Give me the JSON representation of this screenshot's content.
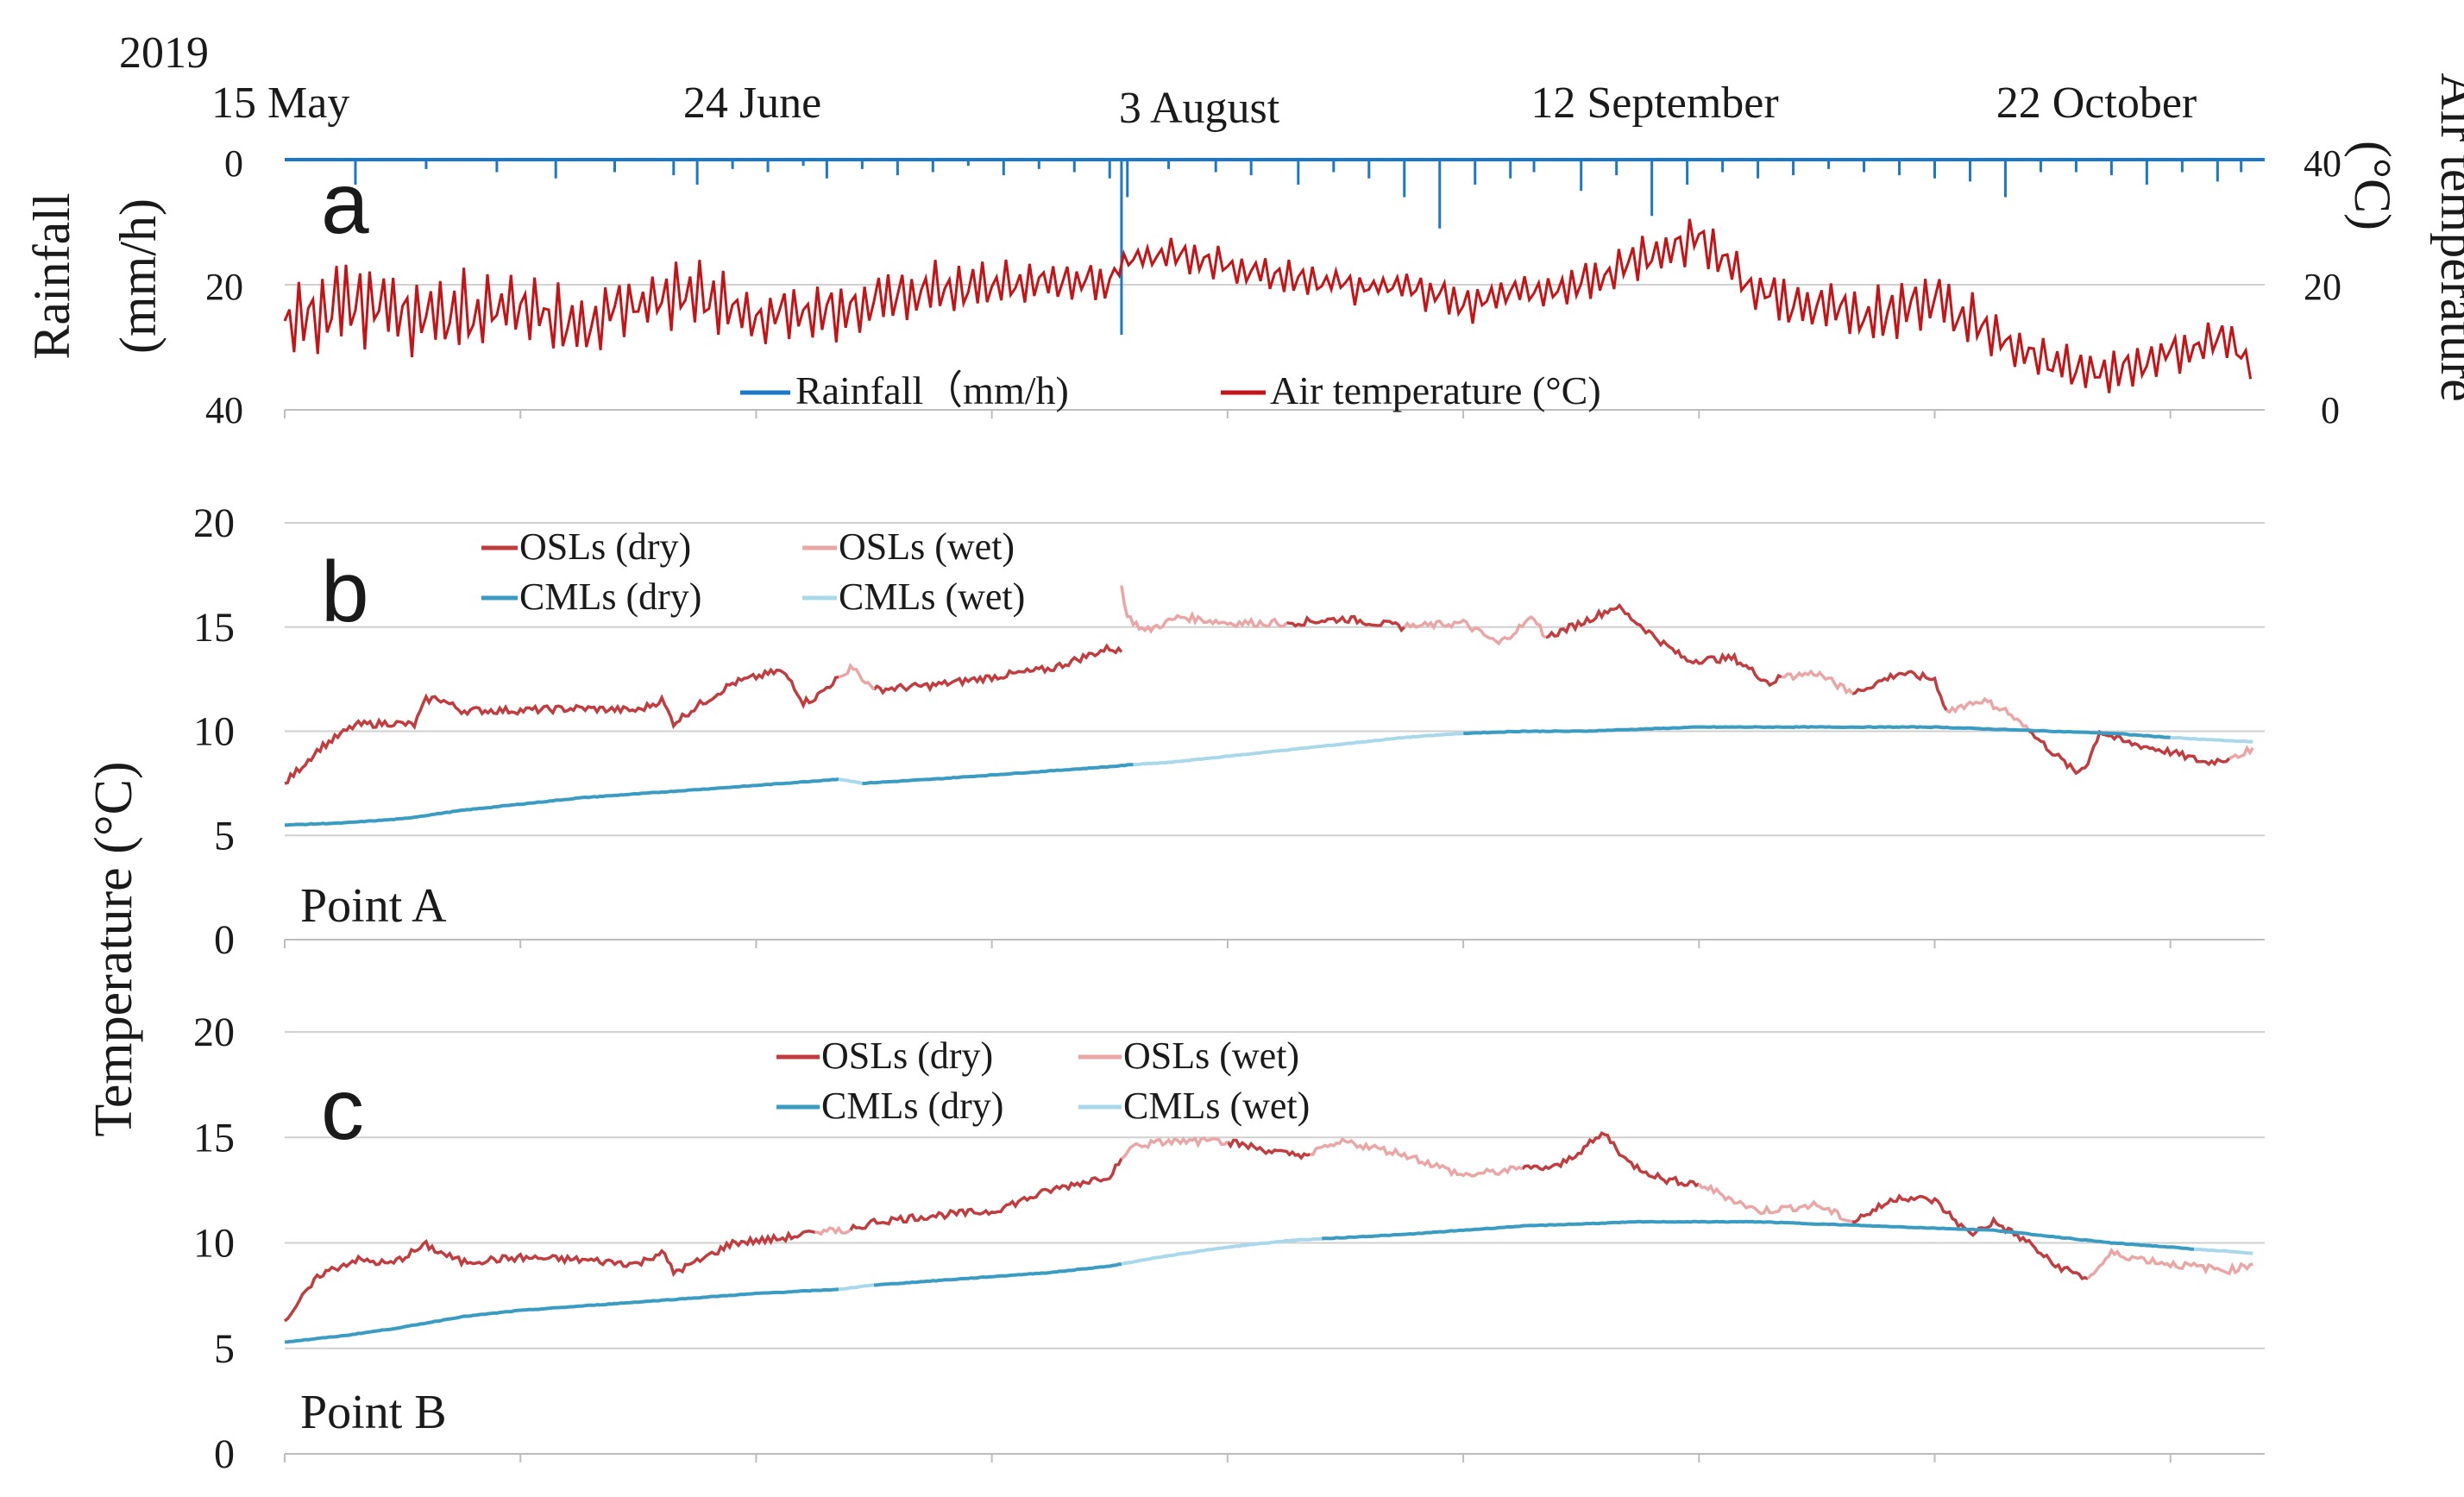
{
  "year_label": "2019",
  "date_ticks": [
    "15 May",
    "24 June",
    "3 August",
    "12 September",
    "22 October"
  ],
  "colors": {
    "rain": "#1b78c8",
    "air": "#c41417",
    "osl_dry": "#c03c3e",
    "osl_wet": "#eaa5a5",
    "cml_dry": "#3a9cc2",
    "cml_wet": "#a8d8ea",
    "grid": "#d0d0d0"
  },
  "chart_data": [
    {
      "id": "a",
      "type": "line",
      "panel_letter": "a",
      "x_unit": "days since 15 May 2019",
      "x_range": [
        0,
        168
      ],
      "ylabel_left": "Rainfall\n(mm/h)",
      "ylabel_right": "Air temperature\n(°C)",
      "y_left_range": [
        0,
        40
      ],
      "y_left_inverted": true,
      "y_left_ticks": [
        "0",
        "20",
        "40"
      ],
      "y_right_range": [
        0,
        40
      ],
      "y_right_ticks": [
        "40",
        "20",
        "0"
      ],
      "legend": [
        "Rainfall（mm/h)",
        "Air temperature (°C)"
      ],
      "series": [
        {
          "name": "Rainfall（mm/h)",
          "key": "rain",
          "axis": "left",
          "style": "spikes",
          "x": [
            6,
            12,
            18,
            23,
            28,
            33,
            35,
            38,
            41,
            44,
            46,
            49,
            52,
            55,
            58,
            61,
            64,
            67,
            70,
            71,
            71.5,
            75,
            79,
            82,
            86,
            89,
            92,
            95,
            98,
            101,
            104,
            106,
            110,
            113,
            116,
            119,
            122,
            125,
            128,
            131,
            134,
            137,
            140,
            143,
            146,
            149,
            152,
            155,
            158,
            161,
            164,
            166
          ],
          "values": [
            4,
            1.5,
            2,
            3,
            2,
            2.5,
            4,
            1.5,
            2,
            1,
            3,
            1.5,
            2.5,
            2,
            1,
            2.5,
            1.5,
            2,
            3,
            28,
            6,
            1.5,
            2,
            2.5,
            4,
            2,
            3,
            6,
            11,
            4,
            3,
            2,
            5,
            2.5,
            9,
            4,
            2,
            3,
            2.5,
            1.5,
            2,
            2.5,
            3,
            3.5,
            6,
            2,
            2,
            2.5,
            4,
            2,
            3.5,
            2
          ]
        },
        {
          "name": "Air temperature (°C)",
          "key": "air",
          "axis": "right",
          "style": "noisy",
          "x": [
            0,
            5,
            10,
            15,
            20,
            25,
            30,
            35,
            40,
            45,
            50,
            55,
            60,
            65,
            70,
            71,
            75,
            80,
            85,
            90,
            95,
            100,
            105,
            110,
            115,
            120,
            125,
            130,
            135,
            140,
            145,
            150,
            155,
            160,
            165,
            167
          ],
          "values": [
            14,
            17,
            16,
            15,
            16,
            14,
            17,
            18,
            15,
            16,
            17,
            19,
            20,
            21,
            20,
            24,
            25,
            23,
            21,
            20,
            20,
            17,
            19,
            20,
            24,
            28,
            19,
            16,
            15,
            18,
            12,
            7,
            6,
            9,
            11,
            7
          ],
          "amplitude": [
            7,
            8,
            8,
            7,
            6,
            6,
            6,
            6,
            5,
            5,
            5,
            5,
            4,
            4,
            4,
            2,
            3,
            3,
            3,
            3,
            3,
            3,
            3,
            4,
            4,
            4,
            4,
            5,
            5,
            5,
            4,
            4,
            4,
            4,
            4,
            3
          ]
        }
      ]
    },
    {
      "id": "b",
      "type": "line",
      "panel_letter": "b",
      "point_label": "Point A",
      "x_range": [
        0,
        168
      ],
      "ylabel": "Temperature (°C)",
      "y_range": [
        0,
        20
      ],
      "y_ticks": [
        "0",
        "5",
        "10",
        "15",
        "20"
      ],
      "legend": [
        "OSLs (dry)",
        "OSLs (wet)",
        "CMLs (dry)",
        "CMLs (wet)"
      ],
      "series": [
        {
          "name": "OSLs (dry)",
          "key": "osl_dry",
          "segments": [
            {
              "x": [
                0,
                3,
                6,
                9,
                11,
                12,
                13,
                15,
                20,
                25,
                30,
                32,
                33,
                35,
                38,
                42,
                43,
                44,
                45,
                47
              ],
              "y": [
                7.5,
                9.2,
                10.3,
                10.4,
                10.3,
                11.5,
                11.6,
                11,
                11,
                11.1,
                11,
                11.5,
                10.4,
                11.2,
                12.3,
                12.9,
                12.4,
                11.4,
                11.6,
                12.6
              ]
            },
            {
              "x": [
                50,
                55,
                60,
                65,
                70,
                71
              ],
              "y": [
                12.0,
                12.2,
                12.6,
                13.0,
                14.0,
                13.8
              ]
            },
            {
              "x": [
                85,
                90,
                95
              ],
              "y": [
                15.2,
                15.4,
                15.0
              ]
            },
            {
              "x": [
                107,
                110,
                113,
                117,
                119,
                123,
                126,
                127
              ],
              "y": [
                14.5,
                15.2,
                16,
                14.2,
                13.4,
                13.5,
                12.3,
                12.6
              ]
            },
            {
              "x": [
                133,
                137,
                140,
                141
              ],
              "y": [
                11.8,
                12.8,
                12.5,
                11.0
              ]
            },
            {
              "x": [
                148,
                150,
                152,
                153,
                154,
                156,
                160,
                163,
                165
              ],
              "y": [
                10.0,
                9,
                8,
                8.5,
                10,
                9.5,
                9,
                8.5,
                8.7
              ]
            }
          ]
        },
        {
          "name": "OSLs (wet)",
          "key": "osl_wet",
          "segments": [
            {
              "x": [
                47,
                48,
                49,
                50
              ],
              "y": [
                12.6,
                13,
                12.6,
                12.0
              ]
            },
            {
              "x": [
                71,
                71.5,
                73,
                76,
                80,
                85
              ],
              "y": [
                17,
                15.5,
                14.8,
                15.5,
                15.2,
                15.2
              ]
            },
            {
              "x": [
                95,
                100,
                103,
                106,
                107
              ],
              "y": [
                15.0,
                15.2,
                14.2,
                15.5,
                14.5
              ]
            },
            {
              "x": [
                127,
                130,
                133
              ],
              "y": [
                12.6,
                12.8,
                11.8
              ]
            },
            {
              "x": [
                141,
                144,
                146,
                148
              ],
              "y": [
                11.0,
                11.5,
                11,
                10.0
              ]
            },
            {
              "x": [
                165,
                167
              ],
              "y": [
                8.7,
                9.2
              ]
            }
          ]
        },
        {
          "name": "CMLs (dry)",
          "key": "cml_dry",
          "segments": [
            {
              "x": [
                0,
                5,
                10,
                15,
                20,
                25,
                30,
                35,
                40,
                47
              ],
              "y": [
                5.5,
                5.6,
                5.8,
                6.2,
                6.5,
                6.8,
                7.0,
                7.2,
                7.4,
                7.7
              ]
            },
            {
              "x": [
                49,
                55,
                60,
                65,
                70,
                72
              ],
              "y": [
                7.5,
                7.7,
                7.9,
                8.1,
                8.3,
                8.4
              ]
            },
            {
              "x": [
                100,
                105,
                110,
                115,
                120,
                125,
                130,
                135,
                140,
                145,
                150,
                155,
                160
              ],
              "y": [
                9.9,
                10.0,
                10.0,
                10.1,
                10.2,
                10.2,
                10.2,
                10.2,
                10.2,
                10.1,
                10.0,
                9.9,
                9.7
              ]
            }
          ]
        },
        {
          "name": "CMLs (wet)",
          "key": "cml_wet",
          "segments": [
            {
              "x": [
                47,
                49
              ],
              "y": [
                7.7,
                7.5
              ]
            },
            {
              "x": [
                72,
                75,
                80,
                85,
                90,
                95,
                100
              ],
              "y": [
                8.4,
                8.5,
                8.8,
                9.1,
                9.4,
                9.7,
                9.9
              ]
            },
            {
              "x": [
                160,
                163,
                167
              ],
              "y": [
                9.7,
                9.6,
                9.5
              ]
            }
          ]
        }
      ]
    },
    {
      "id": "c",
      "type": "line",
      "panel_letter": "c",
      "point_label": "Point B",
      "x_range": [
        0,
        168
      ],
      "y_range": [
        0,
        20
      ],
      "y_ticks": [
        "0",
        "5",
        "10",
        "15",
        "20"
      ],
      "legend": [
        "OSLs (dry)",
        "OSLs (wet)",
        "CMLs (dry)",
        "CMLs (wet)"
      ],
      "series": [
        {
          "name": "OSLs (dry)",
          "key": "osl_dry",
          "segments": [
            {
              "x": [
                0,
                3,
                6,
                9,
                12,
                13,
                15,
                20,
                25,
                30,
                32,
                33,
                35,
                38,
                42,
                45
              ],
              "y": [
                6.3,
                8.5,
                9.2,
                9,
                9.9,
                9.6,
                9.1,
                9.3,
                9.2,
                9.0,
                9.6,
                8.6,
                9.1,
                10,
                10.2,
                10.5
              ]
            },
            {
              "x": [
                48,
                50,
                55,
                60,
                65,
                70,
                71
              ],
              "y": [
                10.6,
                11,
                11.3,
                11.5,
                12.5,
                13.2,
                14
              ]
            },
            {
              "x": [
                80,
                85,
                87
              ],
              "y": [
                14.8,
                14.2,
                14.2
              ]
            },
            {
              "x": [
                105,
                108,
                112,
                114,
                117,
                120
              ],
              "y": [
                13.5,
                13.6,
                15.2,
                13.8,
                13.0,
                12.8
              ]
            },
            {
              "x": [
                133,
                137,
                140,
                143,
                145,
                148,
                150,
                153
              ],
              "y": [
                11.0,
                12.2,
                12,
                10.4,
                11,
                10,
                9,
                8.3
              ]
            }
          ]
        },
        {
          "name": "OSLs (wet)",
          "key": "osl_wet",
          "segments": [
            {
              "x": [
                45,
                48
              ],
              "y": [
                10.5,
                10.6
              ]
            },
            {
              "x": [
                71,
                72,
                75,
                80
              ],
              "y": [
                14,
                14.6,
                14.8,
                14.8
              ]
            },
            {
              "x": [
                87,
                90,
                95,
                100,
                105
              ],
              "y": [
                14.2,
                14.8,
                14.2,
                13.2,
                13.5
              ]
            },
            {
              "x": [
                120,
                125,
                130,
                133
              ],
              "y": [
                12.8,
                11.5,
                11.8,
                11.0
              ]
            },
            {
              "x": [
                153,
                155,
                160,
                165,
                167
              ],
              "y": [
                8.3,
                9.5,
                9.0,
                8.7,
                9.0
              ]
            }
          ]
        },
        {
          "name": "CMLs (dry)",
          "key": "cml_dry",
          "segments": [
            {
              "x": [
                0,
                5,
                10,
                15,
                20,
                25,
                30,
                35,
                40,
                47
              ],
              "y": [
                5.3,
                5.6,
                6.0,
                6.5,
                6.8,
                7.0,
                7.2,
                7.4,
                7.6,
                7.8
              ]
            },
            {
              "x": [
                50,
                55,
                60,
                65,
                70,
                71
              ],
              "y": [
                8.0,
                8.2,
                8.4,
                8.6,
                8.9,
                9.0
              ]
            },
            {
              "x": [
                88,
                95,
                100,
                105,
                110,
                115,
                120,
                125,
                130,
                135,
                140,
                145,
                150,
                155,
                160,
                162
              ],
              "y": [
                10.2,
                10.4,
                10.6,
                10.8,
                10.9,
                11.0,
                11.0,
                11.0,
                10.9,
                10.8,
                10.7,
                10.6,
                10.3,
                10.0,
                9.8,
                9.7
              ]
            }
          ]
        },
        {
          "name": "CMLs (wet)",
          "key": "cml_wet",
          "segments": [
            {
              "x": [
                47,
                50
              ],
              "y": [
                7.8,
                8.0
              ]
            },
            {
              "x": [
                71,
                75,
                80,
                85,
                88
              ],
              "y": [
                9.0,
                9.4,
                9.8,
                10.1,
                10.2
              ]
            },
            {
              "x": [
                162,
                165,
                167
              ],
              "y": [
                9.7,
                9.6,
                9.5
              ]
            }
          ]
        }
      ]
    }
  ]
}
